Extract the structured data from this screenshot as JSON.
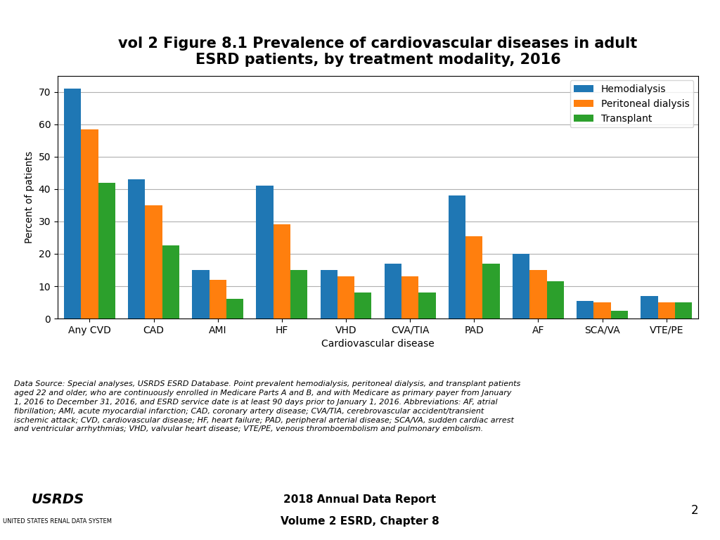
{
  "chart_data": {
    "type": "bar",
    "title": "vol 2 Figure 8.1 Prevalence of cardiovascular diseases in adult\nESRD patients, by treatment modality, 2016",
    "x_label": "Cardiovascular disease",
    "y_label": "Percent of patients",
    "categories": [
      "Any CVD",
      "CAD",
      "AMI",
      "HF",
      "VHD",
      "CVA/TIA",
      "PAD",
      "AF",
      "SCA/VA",
      "VTE/PE"
    ],
    "series": [
      {
        "name": "Hemodialysis",
        "values": [
          71,
          43,
          15,
          41,
          15,
          17,
          38,
          20,
          5.5,
          7
        ]
      },
      {
        "name": "Peritoneal dialysis",
        "values": [
          58.5,
          35,
          12,
          29,
          13,
          13,
          25.5,
          15,
          5,
          5
        ]
      },
      {
        "name": "Transplant",
        "values": [
          42,
          22.5,
          6,
          15,
          8,
          8,
          17,
          11.5,
          2.5,
          5
        ]
      }
    ],
    "ylim": [
      0,
      75
    ],
    "yticks": [
      0,
      10,
      20,
      30,
      40,
      50,
      60,
      70
    ],
    "grid": true,
    "legend": "upper right",
    "annotations": [
      "Data Source: Special analyses, USRDS ESRD Database. Point prevalent hemodialysis, peritoneal dialysis, and transplant patients\naged 22 and older, who are continuously enrolled in Medicare Parts A and B, and with Medicare as primary payer from January\n1, 2016 to December 31, 2016, and ESRD service date is at least 90 days prior to January 1, 2016. Abbreviations: AF, atrial\nfibrillation; AMI, acute myocardial infarction; CAD, coronary artery disease; CVA/TIA, cerebrovascular accident/transient\nischemic attack; CVD, cardiovascular disease; HF, heart failure; PAD, peripheral arterial disease; SCA/VA, sudden cardiac arrest\nand ventricular arrhythmias; VHD, valvular heart disease; VTE/PE, venous thromboembolism and pulmonary embolism.",
      "2018 Annual Data Report",
      "Volume 2 ESRD, Chapter 8",
      "2",
      "USRDS",
      "UNITED STATES RENAL DATA SYSTEM"
    ]
  }
}
